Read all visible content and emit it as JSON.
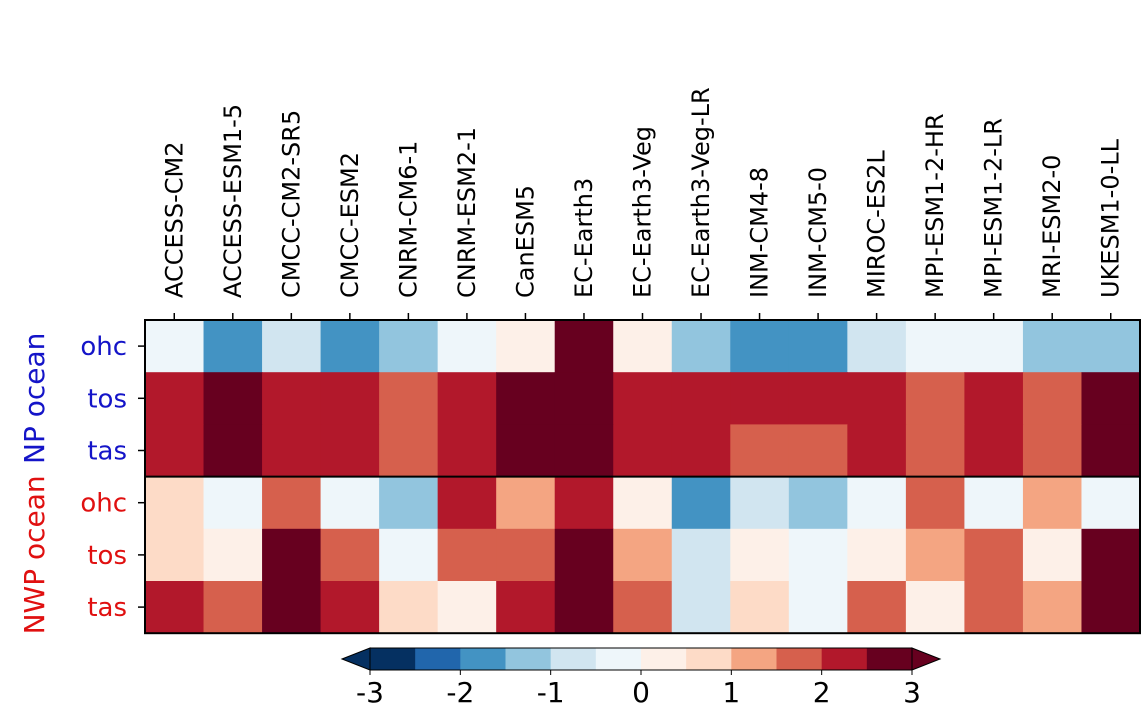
{
  "chart_data": {
    "type": "heatmap",
    "columns": [
      "ACCESS-CM2",
      "ACCESS-ESM1-5",
      "CMCC-CM2-SR5",
      "CMCC-ESM2",
      "CNRM-CM6-1",
      "CNRM-ESM2-1",
      "CanESM5",
      "EC-Earth3",
      "EC-Earth3-Veg",
      "EC-Earth3-Veg-LR",
      "INM-CM4-8",
      "INM-CM5-0",
      "MIROC-ES2L",
      "MPI-ESM1-2-HR",
      "MPI-ESM1-2-LR",
      "MRI-ESM2-0",
      "UKESM1-0-LL"
    ],
    "rows": [
      "ohc",
      "tos",
      "tas",
      "ohc",
      "tos",
      "tas"
    ],
    "groups": [
      {
        "label": "NP ocean",
        "color": "#1414c8",
        "rows": [
          0,
          2
        ]
      },
      {
        "label": "NWP ocean",
        "color": "#e01010",
        "rows": [
          3,
          5
        ]
      }
    ],
    "values": [
      [
        -0.25,
        -1.75,
        -0.75,
        -1.75,
        -1.25,
        -0.25,
        0.25,
        2.75,
        0.25,
        -1.25,
        -1.75,
        -1.75,
        -0.75,
        -0.25,
        -0.25,
        -1.25,
        -1.25
      ],
      [
        2.25,
        3.25,
        2.25,
        2.25,
        1.75,
        2.25,
        3.25,
        3.25,
        2.25,
        2.25,
        2.25,
        2.25,
        2.25,
        1.75,
        2.25,
        1.75,
        3.25
      ],
      [
        2.25,
        3.25,
        2.25,
        2.25,
        1.75,
        2.25,
        3.25,
        3.25,
        2.25,
        2.25,
        1.75,
        1.75,
        2.25,
        1.75,
        2.25,
        1.75,
        3.25
      ],
      [
        0.75,
        -0.25,
        1.75,
        -0.25,
        -1.25,
        2.25,
        1.25,
        2.25,
        0.25,
        -1.75,
        -0.75,
        -1.25,
        -0.25,
        1.75,
        -0.25,
        1.25,
        -0.25
      ],
      [
        0.75,
        0.25,
        3.25,
        1.75,
        -0.25,
        1.75,
        1.75,
        3.25,
        1.25,
        -0.75,
        0.25,
        -0.25,
        0.25,
        1.25,
        1.75,
        0.25,
        2.75
      ],
      [
        2.25,
        1.75,
        3.25,
        2.25,
        0.75,
        0.25,
        2.25,
        3.25,
        1.75,
        -0.75,
        0.75,
        -0.25,
        1.75,
        0.25,
        1.75,
        1.25,
        3.25
      ]
    ],
    "colorbar": {
      "min": -3,
      "max": 3,
      "ticks": [
        "-3",
        "-2",
        "-1",
        "0",
        "1",
        "2",
        "3"
      ],
      "colors": [
        "#053061",
        "#2166ac",
        "#4393c3",
        "#92c5de",
        "#d1e5f0",
        "#eef6fa",
        "#fdf0e8",
        "#fddbc7",
        "#f4a582",
        "#d6604d",
        "#b2182b",
        "#67001f"
      ],
      "extend": "both"
    },
    "title": "",
    "xlabel": "",
    "ylabel": ""
  }
}
